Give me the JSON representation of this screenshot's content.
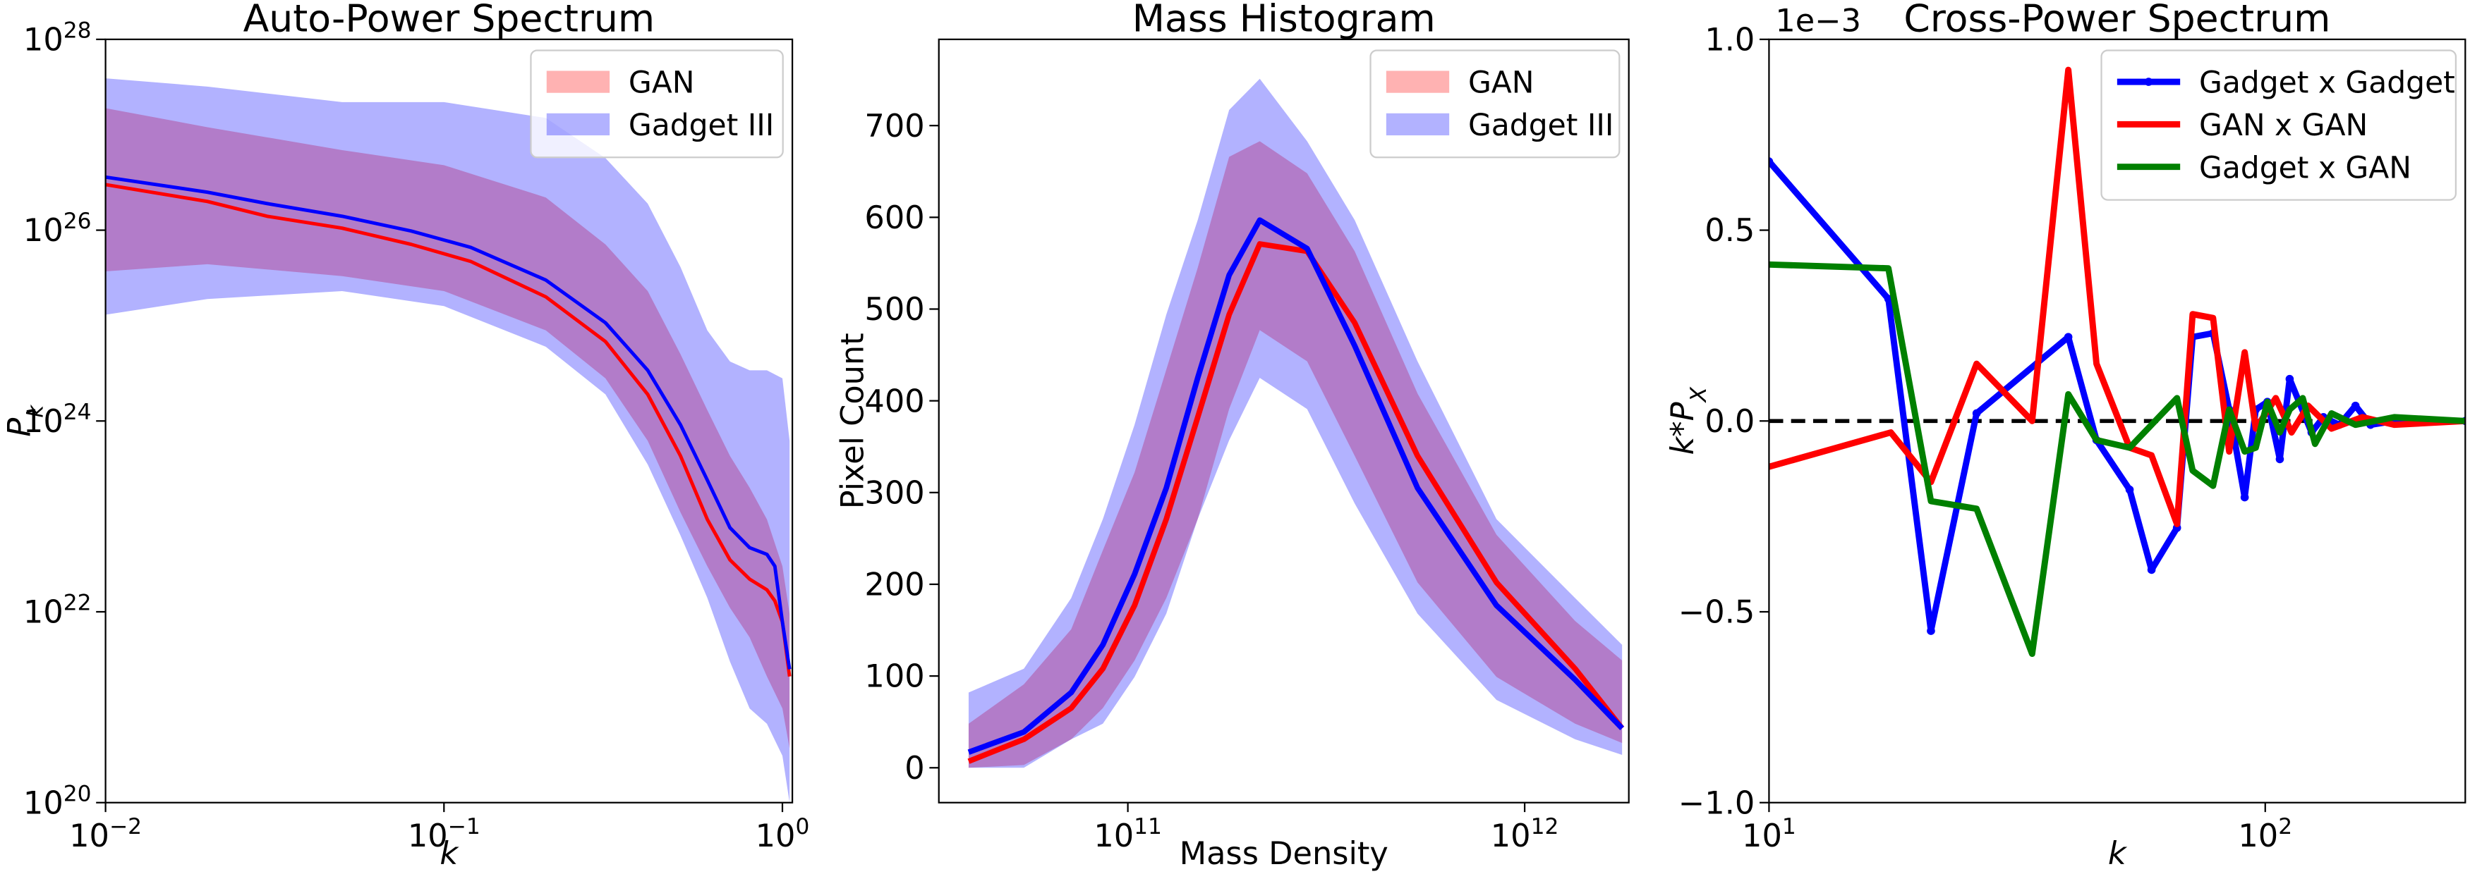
{
  "chart_data": [
    {
      "type": "band_line",
      "title": "Auto-Power Spectrum",
      "x_label": "k",
      "y_label": "P_k",
      "x_scale": "log",
      "y_scale": "log",
      "xlim": [
        0.01,
        1.07
      ],
      "ylim": [
        1e+20,
        1e+28
      ],
      "xticks": [
        {
          "value": 0.01,
          "label": "10^−2"
        },
        {
          "value": 0.1,
          "label": "10^−1"
        },
        {
          "value": 1,
          "label": "10^0"
        }
      ],
      "yticks": [
        {
          "value": 1e+20,
          "label": "10^20"
        },
        {
          "value": 1e+22,
          "label": "10^22"
        },
        {
          "value": 1e+24,
          "label": "10^24"
        },
        {
          "value": 1e+26,
          "label": "10^26"
        },
        {
          "value": 1e+28,
          "label": "10^28"
        }
      ],
      "legend": "upper right",
      "band_x": [
        0.01,
        0.02,
        0.05,
        0.1,
        0.2,
        0.3,
        0.4,
        0.5,
        0.6,
        0.7,
        0.8,
        0.9,
        1.0,
        1.05
      ],
      "bands": [
        {
          "name": "GAN",
          "color": "#ff0000",
          "upper": [
            1.9e+27,
            1.2e+27,
            6.9e+26,
            4.8e+26,
            2.2e+26,
            7.1e+25,
            2.3e+25,
            5e+24,
            1.3e+24,
            4.3e+23,
            2e+23,
            9.3e+22,
            3e+22,
            9.5e+21
          ],
          "lower": [
            3.7e+25,
            4.4e+25,
            3.3e+25,
            2.3e+25,
            8.9e+24,
            2.8e+24,
            6.2e+23,
            1.1e+23,
            3e+22,
            1.1e+22,
            5.4e+21,
            2.1e+21,
            9.7e+20,
            3.7e+20
          ]
        },
        {
          "name": "Gadget III",
          "color": "#0000ff",
          "upper": [
            3.9e+27,
            3.2e+27,
            2.2e+27,
            2.2e+27,
            1.5e+27,
            5.7e+26,
            1.9e+26,
            4.1e+25,
            8.9e+24,
            4.2e+24,
            3.4e+24,
            3.4e+24,
            2.8e+24,
            6.2e+23
          ],
          "lower": [
            1.3e+25,
            1.9e+25,
            2.3e+25,
            1.6e+25,
            6e+24,
            1.9e+24,
            3.5e+23,
            6.3e+22,
            1.4e+22,
            3e+21,
            9.7e+20,
            6.7e+20,
            3.1e+20,
            1e+20
          ]
        }
      ],
      "x": [
        0.01,
        0.02,
        0.03,
        0.05,
        0.08,
        0.12,
        0.2,
        0.3,
        0.4,
        0.5,
        0.6,
        0.7,
        0.8,
        0.9,
        0.95,
        1.0,
        1.05
      ],
      "lines": [
        {
          "color": "#ff0000",
          "values": [
            3e+26,
            2e+26,
            1.4e+26,
            1.05e+26,
            7.1e+25,
            4.7e+25,
            2e+25,
            6.8e+24,
            1.9e+24,
            4.3e+23,
            9.3e+22,
            3.5e+22,
            2.2e+22,
            1.7e+22,
            1.3e+22,
            7.8e+21,
            2.1e+21
          ]
        },
        {
          "color": "#0000ff",
          "values": [
            3.6e+26,
            2.5e+26,
            1.9e+26,
            1.4e+26,
            9.8e+25,
            6.6e+25,
            3e+25,
            1.07e+25,
            3.4e+24,
            9.1e+23,
            2.4e+23,
            7.6e+22,
            4.7e+22,
            4e+22,
            3e+22,
            7.8e+21,
            2.5e+21
          ]
        }
      ]
    },
    {
      "type": "band_line",
      "title": "Mass Histogram",
      "x_label": "Mass Density",
      "y_label": "Pixel Count",
      "x_scale": "log",
      "y_scale": "linear",
      "xlim": [
        33400000000.0,
        1830000000000.0
      ],
      "ylim": [
        -38,
        794
      ],
      "xticks": [
        {
          "value": 100000000000.0,
          "label": "10^11"
        },
        {
          "value": 1000000000000.0,
          "label": "10^12"
        }
      ],
      "yticks": [
        0,
        100,
        200,
        300,
        400,
        500,
        600,
        700
      ],
      "legend": "upper right",
      "x": [
        39700000000.0,
        54700000000.0,
        72000000000.0,
        86500000000.0,
        104000000000.0,
        125000000000.0,
        150000000000.0,
        180000000000.0,
        215000000000.0,
        283000000000.0,
        373000000000.0,
        537000000000.0,
        849000000000.0,
        1340000000000.0,
        1760000000000.0
      ],
      "bands": [
        {
          "name": "GAN",
          "color": "#ff0000",
          "upper": [
            48,
            91,
            151,
            237,
            322,
            434,
            545,
            666,
            683,
            648,
            563,
            408,
            254,
            160,
            117
          ],
          "lower": [
            0,
            3,
            31,
            65,
            117,
            185,
            271,
            391,
            477,
            443,
            340,
            202,
            99,
            48,
            27
          ]
        },
        {
          "name": "Gadget III",
          "color": "#0000ff",
          "upper": [
            82,
            108,
            185,
            271,
            374,
            494,
            597,
            717,
            751,
            683,
            597,
            443,
            271,
            185,
            134
          ],
          "lower": [
            0,
            0,
            31,
            48,
            99,
            168,
            271,
            357,
            425,
            391,
            288,
            168,
            74,
            31,
            14
          ]
        }
      ],
      "lines": [
        {
          "color": "#ff0000",
          "values": [
            7,
            31,
            65,
            108,
            177,
            271,
            382,
            494,
            571,
            563,
            485,
            340,
            202,
            108,
            43
          ]
        },
        {
          "color": "#0000ff",
          "values": [
            17,
            39,
            82,
            134,
            211,
            305,
            425,
            537,
            597,
            566,
            460,
            305,
            177,
            96,
            43
          ]
        }
      ]
    },
    {
      "type": "line",
      "title": "Cross-Power Spectrum",
      "x_label": "k",
      "y_label": "k*P_X",
      "offset_label": "1e−3",
      "x_scale": "log",
      "y_scale": "linear",
      "xlim": [
        10,
        253
      ],
      "ylim": [
        -1,
        1
      ],
      "xticks": [
        {
          "value": 10,
          "label": "10^1"
        },
        {
          "value": 100,
          "label": "10^2"
        }
      ],
      "yticks": [
        {
          "value": -1,
          "label": "−1.0"
        },
        {
          "value": -0.5,
          "label": "−0.5"
        },
        {
          "value": 0,
          "label": "0.0"
        },
        {
          "value": 0.5,
          "label": "0.5"
        },
        {
          "value": 1,
          "label": "1.0"
        }
      ],
      "legend": "upper right",
      "hline": 0,
      "series": [
        {
          "name": "Gadget x Gadget",
          "color": "#0000ff",
          "marker": "o",
          "x": [
            10,
            17.4,
            21.2,
            26.2,
            40.1,
            45.7,
            53.3,
            59,
            66.4,
            71.4,
            78.5,
            84.6,
            90.9,
            95.7,
            101,
            107,
            112,
            117,
            124,
            131,
            141,
            152,
            163,
            182,
            211,
            253
          ],
          "values": [
            0.68,
            0.32,
            -0.55,
            0.02,
            0.22,
            -0.05,
            -0.18,
            -0.39,
            -0.28,
            0.22,
            0.23,
            0.03,
            -0.2,
            0.03,
            0.05,
            -0.1,
            0.11,
            0.05,
            -0.03,
            0.01,
            -0.01,
            0.04,
            -0.01,
            0,
            0,
            0
          ]
        },
        {
          "name": "GAN x GAN",
          "color": "#ff0000",
          "x": [
            10,
            17.6,
            21.2,
            26.2,
            33.9,
            40.1,
            45.7,
            53.3,
            59,
            66.4,
            71.4,
            78.5,
            84.6,
            90.9,
            95.7,
            105,
            113,
            122,
            136,
            157,
            182,
            253
          ],
          "values": [
            -0.12,
            -0.03,
            -0.16,
            0.15,
            0,
            0.92,
            0.15,
            -0.07,
            -0.09,
            -0.27,
            0.28,
            0.27,
            -0.08,
            0.18,
            -0.02,
            0.06,
            -0.03,
            0.04,
            -0.02,
            0.01,
            -0.01,
            0
          ]
        },
        {
          "name": "Gadget x GAN",
          "color": "#008000",
          "x": [
            10,
            17.4,
            21.2,
            26.2,
            33.9,
            40.1,
            45.7,
            53.3,
            59,
            66.4,
            71.4,
            78.5,
            84.6,
            90.9,
            95.7,
            101,
            107,
            112,
            119,
            126,
            136,
            152,
            182,
            253
          ],
          "values": [
            0.41,
            0.4,
            -0.21,
            -0.23,
            -0.61,
            0.07,
            -0.05,
            -0.07,
            -0.01,
            0.06,
            -0.13,
            -0.17,
            0.03,
            -0.08,
            -0.07,
            0.05,
            -0.03,
            0.03,
            0.06,
            -0.06,
            0.02,
            -0.01,
            0.01,
            0
          ]
        }
      ]
    }
  ]
}
